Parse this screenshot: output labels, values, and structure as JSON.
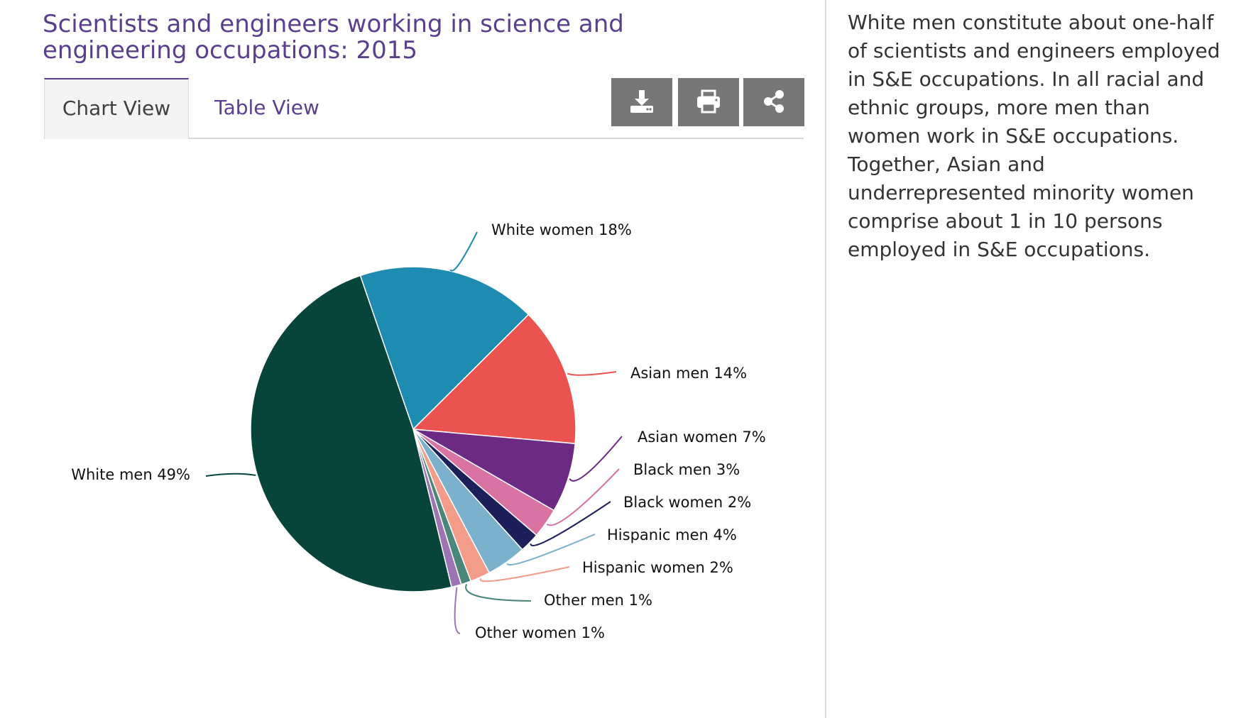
{
  "title": "Scientists and engineers working in science and engineering occupations: 2015",
  "tabs": {
    "chart_view": "Chart View",
    "table_view": "Table View"
  },
  "toolbar": {
    "download_icon": "download-icon",
    "print_icon": "print-icon",
    "share_icon": "share-icon"
  },
  "description": "White men constitute about one-half of scientists and engineers employed in S&E occupations. In all racial and ethnic groups, more men than women work in S&E occupations. Together, Asian and underrepresented minority women comprise about 1 in 10 persons employed in S&E occupations.",
  "colors": {
    "title": "#5b3f8f",
    "button": "#777777"
  },
  "chart_data": {
    "type": "pie",
    "title": "",
    "legend": "none",
    "slices": [
      {
        "label": "White women 18%",
        "value": 18,
        "color": "#1e8bb0"
      },
      {
        "label": "Asian men 14%",
        "value": 14,
        "color": "#ea5350"
      },
      {
        "label": "Asian women 7%",
        "value": 7,
        "color": "#6d2a84"
      },
      {
        "label": "Black men 3%",
        "value": 3,
        "color": "#d873a3"
      },
      {
        "label": "Black women 2%",
        "value": 2,
        "color": "#1c1f5a"
      },
      {
        "label": "Hispanic men 4%",
        "value": 4,
        "color": "#7bb1cc"
      },
      {
        "label": "Hispanic women 2%",
        "value": 2,
        "color": "#f39c8a"
      },
      {
        "label": "Other men 1%",
        "value": 1,
        "color": "#4a8679"
      },
      {
        "label": "Other women 1%",
        "value": 1,
        "color": "#9c74b4"
      },
      {
        "label": "White men 49%",
        "value": 49,
        "color": "#07453c"
      }
    ]
  }
}
